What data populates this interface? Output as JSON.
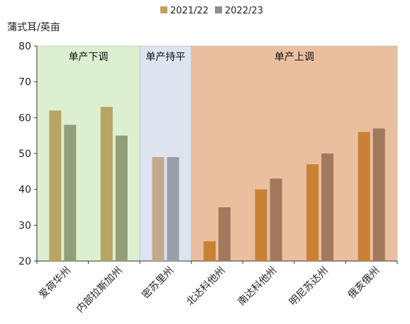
{
  "chart_data": {
    "type": "bar",
    "unit_label": "蒲式耳/英亩",
    "ylim": [
      20,
      80
    ],
    "yticks": [
      20,
      30,
      40,
      50,
      60,
      70,
      80
    ],
    "legend": {
      "position": "top-center",
      "entries": [
        {
          "name": "2021/22",
          "color": "#c0a25a"
        },
        {
          "name": "2022/23",
          "color": "#8d8d8d"
        }
      ]
    },
    "categories": [
      "爱荷华州",
      "内部拉斯加州",
      "密苏里州",
      "北达科他州",
      "南达科他州",
      "明尼苏达州",
      "俄亥俄州"
    ],
    "series": [
      {
        "name": "2021/22",
        "values": [
          62,
          63,
          49,
          25.5,
          40,
          47,
          56
        ]
      },
      {
        "name": "2022/23",
        "values": [
          58,
          55,
          49,
          35,
          43,
          50,
          57
        ]
      }
    ],
    "bar_colors": [
      [
        "#b8a562",
        "#919e78"
      ],
      [
        "#b8a562",
        "#919e78"
      ],
      [
        "#c2a98a",
        "#9a9ea8"
      ],
      [
        "#c98235",
        "#a1795c"
      ],
      [
        "#c98235",
        "#a1795c"
      ],
      [
        "#c98235",
        "#a1795c"
      ],
      [
        "#c98235",
        "#a1795c"
      ]
    ],
    "regions": [
      {
        "label": "单产下调",
        "start": 0,
        "end": 1,
        "color": "#dcefd0"
      },
      {
        "label": "单产持平",
        "start": 2,
        "end": 2,
        "color": "#dde4f0"
      },
      {
        "label": "单产上调",
        "start": 3,
        "end": 6,
        "color": "#eabfa0"
      }
    ]
  }
}
